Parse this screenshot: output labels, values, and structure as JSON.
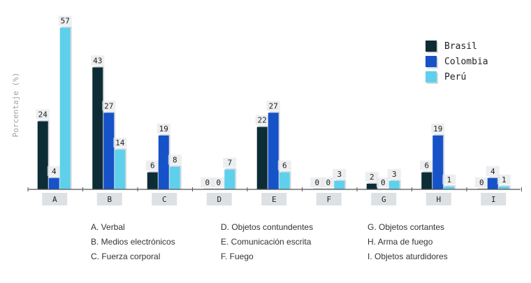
{
  "chart_data": {
    "type": "bar",
    "title": "",
    "xlabel": "",
    "ylabel": "Porcentaje (%)",
    "ylim": [
      0,
      60
    ],
    "grid": false,
    "legend_position": "top-right",
    "categories": [
      "A",
      "B",
      "C",
      "D",
      "E",
      "F",
      "G",
      "H",
      "I"
    ],
    "series": [
      {
        "name": "Brasil",
        "color": "#0d2d36",
        "values": [
          24,
          43,
          6,
          0,
          22,
          0,
          2,
          6,
          0
        ]
      },
      {
        "name": "Colombia",
        "color": "#1652c8",
        "values": [
          4,
          27,
          19,
          0,
          27,
          0,
          0,
          19,
          4
        ]
      },
      {
        "name": "Perú",
        "color": "#5fd0ec",
        "values": [
          57,
          14,
          8,
          7,
          6,
          3,
          3,
          1,
          1
        ]
      }
    ]
  },
  "category_notes": [
    [
      "A. Verbal",
      "B. Medios electrónicos",
      "C. Fuerza corporal"
    ],
    [
      "D. Objetos contundentes",
      "E. Comunicación escrita",
      "F. Fuego"
    ],
    [
      "G. Objetos cortantes",
      "H. Arma de fuego",
      "I. Objetos aturdidores"
    ]
  ]
}
